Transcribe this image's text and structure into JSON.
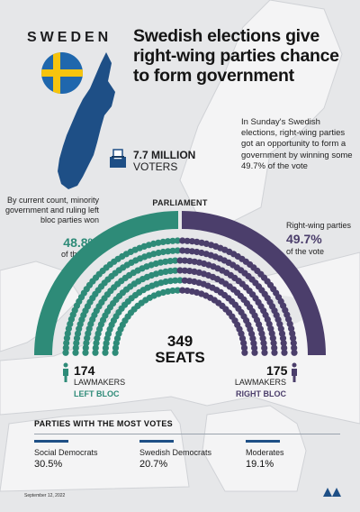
{
  "country": "SWEDEN",
  "headline": "Swedish elections give right-wing parties chance to form government",
  "intro": "In Sunday's Swedish elections, right-wing parties got an opportunity to form a government by winning some 49.7% of the vote",
  "voters": {
    "value": "7.7 MILLION",
    "label": "VOTERS",
    "icon": "ballot-box-icon"
  },
  "parliament_label": "PARLIAMENT",
  "left_bloc": {
    "note": "By current count, minority government and ruling left bloc parties won",
    "percent": "48.8%",
    "percent_value": 48.8,
    "sub": "of the vote",
    "count": "174",
    "count_label": "LAWMAKERS",
    "bloc_label": "LEFT BLOC",
    "color": "#2e8b78"
  },
  "right_bloc": {
    "note": "Right-wing parties",
    "percent": "49.7%",
    "percent_value": 49.7,
    "sub": "of the vote",
    "count": "175",
    "count_label": "LAWMAKERS",
    "bloc_label": "RIGHT BLOC",
    "color": "#4b3e6b"
  },
  "seats": {
    "number": "349",
    "label": "SEATS"
  },
  "parties_title": "PARTIES WITH THE MOST VOTES",
  "parties": [
    {
      "name": "Social Democrats",
      "percent": "30.5%"
    },
    {
      "name": "Swedish Democrats",
      "percent": "20.7%"
    },
    {
      "name": "Moderates",
      "percent": "19.1%"
    }
  ],
  "date": "September 12, 2022",
  "colors": {
    "flag_blue": "#1f67ad",
    "flag_yellow": "#f6c40e",
    "sweden_map": "#1e4f86",
    "party_bar": "#1e4f86"
  }
}
